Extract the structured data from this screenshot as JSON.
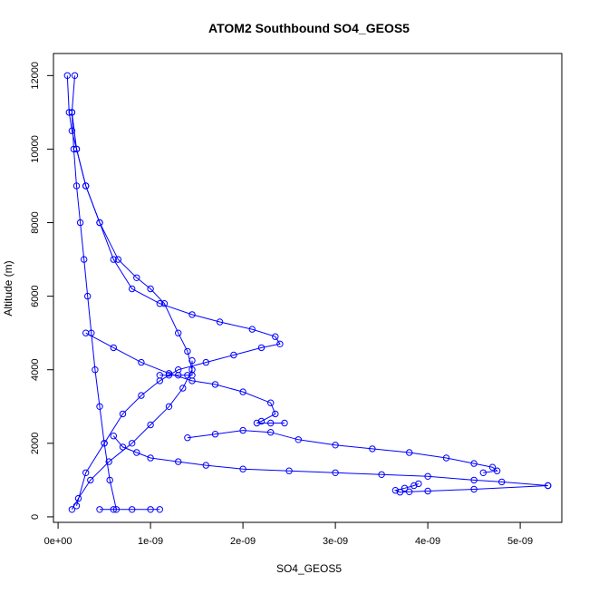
{
  "chart_data": {
    "type": "scatter",
    "title": "ATOM2 Southbound SO4_GEOS5",
    "xlabel": "SO4_GEOS5",
    "ylabel": "Altitude (m)",
    "xlim": [
      -5e-11,
      5.45e-09
    ],
    "ylim": [
      -150,
      12600
    ],
    "x_ticks": [
      0,
      1e-09,
      2e-09,
      3e-09,
      4e-09,
      5e-09
    ],
    "x_tick_labels": [
      "0e+00",
      "1e-09",
      "2e-09",
      "3e-09",
      "4e-09",
      "5e-09"
    ],
    "y_ticks": [
      0,
      2000,
      4000,
      6000,
      8000,
      10000,
      12000
    ],
    "y_tick_labels": [
      "0",
      "2000",
      "4000",
      "6000",
      "8000",
      "10000",
      "12000"
    ],
    "marker": "open-circle",
    "connected": true,
    "grid": false,
    "legend": "none",
    "color": "#0000ff",
    "series": [
      {
        "x": [
          6.3e-10,
          5.6e-10,
          5e-10,
          4.5e-10,
          4e-10,
          3.6e-10,
          3.2e-10,
          2.8e-10,
          2.4e-10,
          2e-10,
          1.7e-10,
          1.5e-10,
          1.8e-10
        ],
        "y": [
          200,
          1000,
          2000,
          3000,
          4000,
          5000,
          6000,
          7000,
          8000,
          9000,
          10000,
          11000,
          12000
        ]
      },
      {
        "x": [
          1e-10,
          1.2e-10,
          1.5e-10,
          2e-10,
          3e-10,
          4.5e-10,
          6.5e-10,
          8.5e-10,
          1e-09,
          1.15e-09,
          1.3e-09,
          1.4e-09,
          1.45e-09,
          1.35e-09,
          1.2e-09,
          1e-09,
          8e-10,
          5.5e-10,
          3.5e-10,
          2.2e-10,
          1.5e-10
        ],
        "y": [
          12000,
          11000,
          10500,
          10000,
          9000,
          8000,
          7000,
          6500,
          6200,
          5800,
          5000,
          4500,
          4000,
          3500,
          3000,
          2500,
          2000,
          1500,
          1000,
          500,
          200
        ]
      },
      {
        "x": [
          1.5e-10,
          2e-10,
          3e-10,
          4.5e-10,
          6e-10,
          8e-10,
          1.1e-09,
          1.45e-09,
          1.75e-09,
          2.1e-09,
          2.35e-09,
          2.4e-09,
          2.2e-09,
          1.9e-09,
          1.6e-09,
          1.3e-09,
          1.1e-09,
          9e-10,
          7e-10,
          5e-10,
          3e-10,
          2e-10
        ],
        "y": [
          11000,
          10000,
          9000,
          8000,
          7000,
          6200,
          5800,
          5500,
          5300,
          5100,
          4900,
          4700,
          4600,
          4400,
          4200,
          4000,
          3700,
          3300,
          2800,
          2000,
          1200,
          300
        ]
      },
      {
        "x": [
          3e-10,
          6e-10,
          9e-10,
          1.2e-09,
          1.45e-09,
          1.7e-09,
          2e-09,
          2.3e-09,
          2.35e-09,
          2.2e-09,
          2.15e-09,
          2.3e-09,
          2.45e-09
        ],
        "y": [
          5000,
          4600,
          4200,
          3900,
          3700,
          3600,
          3400,
          3100,
          2800,
          2600,
          2550,
          2550,
          2550
        ]
      },
      {
        "x": [
          1.4e-09,
          1.7e-09,
          2e-09,
          2.3e-09,
          2.6e-09,
          3e-09,
          3.4e-09,
          3.8e-09,
          4.2e-09,
          4.5e-09,
          4.7e-09,
          4.75e-09,
          4.6e-09
        ],
        "y": [
          2150,
          2250,
          2350,
          2300,
          2100,
          1950,
          1850,
          1750,
          1600,
          1450,
          1350,
          1250,
          1200
        ]
      },
      {
        "x": [
          6e-10,
          7e-10,
          8.5e-10,
          1e-09,
          1.3e-09,
          1.6e-09,
          2e-09,
          2.5e-09,
          3e-09,
          3.5e-09,
          4e-09,
          4.5e-09,
          4.8e-09,
          5.3e-09
        ],
        "y": [
          2200,
          1900,
          1750,
          1600,
          1500,
          1400,
          1300,
          1250,
          1200,
          1150,
          1100,
          1000,
          950,
          850
        ]
      },
      {
        "x": [
          5.3e-09,
          4.5e-09,
          4e-09,
          3.8e-09,
          3.7e-09,
          3.65e-09,
          3.75e-09,
          3.85e-09,
          3.9e-09
        ],
        "y": [
          850,
          750,
          700,
          680,
          670,
          720,
          780,
          850,
          900
        ]
      },
      {
        "x": [
          1.1e-09,
          1.2e-09,
          1.3e-09,
          1.4e-09,
          1.45e-09,
          1.45e-09
        ],
        "y": [
          3850,
          3850,
          3850,
          3850,
          3850,
          4250
        ]
      },
      {
        "x": [
          4.5e-10,
          6e-10,
          8e-10,
          1e-09,
          1.1e-09
        ],
        "y": [
          200,
          200,
          200,
          200,
          200
        ]
      }
    ]
  }
}
